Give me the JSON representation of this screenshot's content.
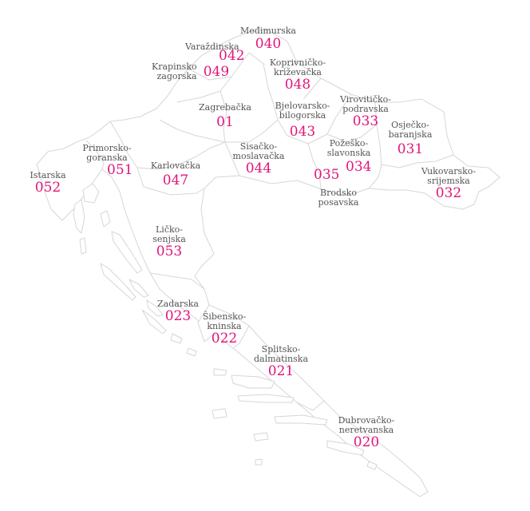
{
  "map": {
    "accent_color": "#e0157a",
    "label_color": "#555555",
    "border_color": "#d6d6d6",
    "counties": [
      {
        "id": "medimurska",
        "name": "Međimurska",
        "code": "040"
      },
      {
        "id": "varazdinska",
        "name": "Varaždinska",
        "code": "042"
      },
      {
        "id": "krapinsko",
        "name": "Krapinsko\nzagorska",
        "code": "049"
      },
      {
        "id": "koprivnicko",
        "name": "Koprivničko-\nkriževačka",
        "code": "048"
      },
      {
        "id": "zagrebacka",
        "name": "Zagrebačka",
        "code": "01"
      },
      {
        "id": "bjelovarsko",
        "name": "Bjelovarsko-\nbilogorska",
        "code": "043"
      },
      {
        "id": "viroviticko",
        "name": "Virovitičko-\npodravska",
        "code": "033"
      },
      {
        "id": "osjecko",
        "name": "Osječko-\nbaranjska",
        "code": "031"
      },
      {
        "id": "istarska",
        "name": "Istarska",
        "code": "052"
      },
      {
        "id": "primorsko",
        "name": "Primorsko-\ngoranska",
        "code": "051"
      },
      {
        "id": "karlovacka",
        "name": "Karlovačka",
        "code": "047"
      },
      {
        "id": "sisacko",
        "name": "Sisačko-\nmoslavačka",
        "code": "044"
      },
      {
        "id": "pozesko",
        "name": "Požeško-\nslavonska",
        "code": "034"
      },
      {
        "id": "brodsko",
        "name": "Brodsko\nposavska",
        "code": "035"
      },
      {
        "id": "vukovarsko",
        "name": "Vukovarsko-\nsrijemska",
        "code": "032"
      },
      {
        "id": "licko",
        "name": "Ličko-\nsenjska",
        "code": "053"
      },
      {
        "id": "zadarska",
        "name": "Zadarska",
        "code": "023"
      },
      {
        "id": "sibensko",
        "name": "Šibensko-\nkninska",
        "code": "022"
      },
      {
        "id": "splitsko",
        "name": "Splitsko-\ndalmatinska",
        "code": "021"
      },
      {
        "id": "dubrovacko",
        "name": "Dubrovačko-\nneretvanska",
        "code": "020"
      }
    ]
  }
}
